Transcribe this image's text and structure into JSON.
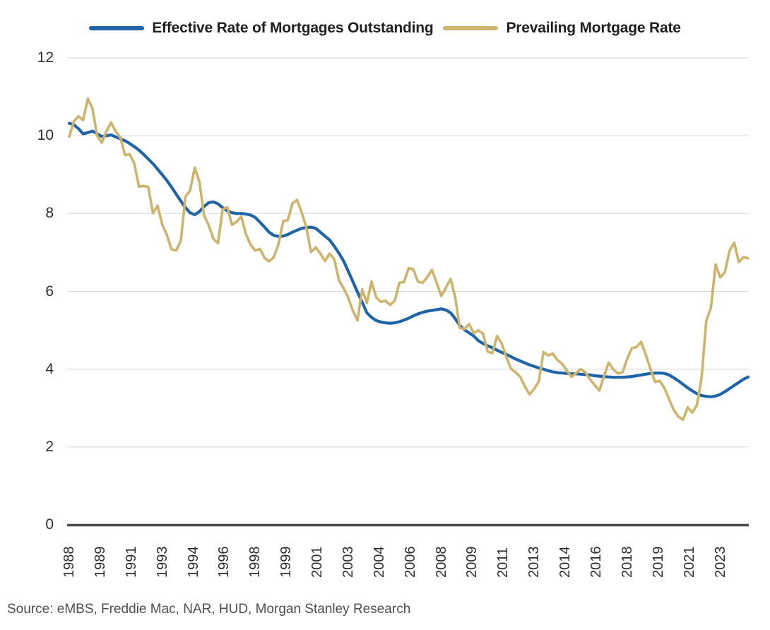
{
  "source_text": "Source: eMBS, Freddie Mac, NAR, HUD, Morgan Stanley Research",
  "chart_data": {
    "type": "line",
    "title": "",
    "xlabel": "",
    "ylabel": "",
    "x_unit": "year (quarterly samples)",
    "x_start": 1988.0,
    "x_step": 0.25,
    "xlim": [
      1988.0,
      2024.6
    ],
    "ylim": [
      0,
      12.4
    ],
    "y_ticks": [
      0,
      2,
      4,
      6,
      8,
      10,
      12
    ],
    "grid": "horizontal",
    "legend_position": "top",
    "grid_color": "#dadada",
    "axis_color": "#4d4d4d",
    "text_color": "#2e2e2e",
    "x_ticks": [
      {
        "label": "1988",
        "year": 1988.0
      },
      {
        "label": "1989",
        "year": 1989.667
      },
      {
        "label": "1991",
        "year": 1991.333
      },
      {
        "label": "1993",
        "year": 1993.0
      },
      {
        "label": "1994",
        "year": 1994.667
      },
      {
        "label": "1996",
        "year": 1996.333
      },
      {
        "label": "1998",
        "year": 1998.0
      },
      {
        "label": "1999",
        "year": 1999.667
      },
      {
        "label": "2001",
        "year": 2001.333
      },
      {
        "label": "2003",
        "year": 2003.0
      },
      {
        "label": "2004",
        "year": 2004.667
      },
      {
        "label": "2006",
        "year": 2006.333
      },
      {
        "label": "2008",
        "year": 2008.0
      },
      {
        "label": "2009",
        "year": 2009.667
      },
      {
        "label": "2011",
        "year": 2011.333
      },
      {
        "label": "2013",
        "year": 2013.0
      },
      {
        "label": "2014",
        "year": 2014.667
      },
      {
        "label": "2016",
        "year": 2016.333
      },
      {
        "label": "2018",
        "year": 2018.0
      },
      {
        "label": "2019",
        "year": 2019.667
      },
      {
        "label": "2021",
        "year": 2021.333
      },
      {
        "label": "2023",
        "year": 2023.0
      }
    ],
    "series": [
      {
        "name": "Effective Rate of Mortgages Outstanding",
        "color": "#1f63a8",
        "line_width": 4.2,
        "values": [
          10.32,
          10.28,
          10.18,
          10.05,
          10.08,
          10.12,
          10.05,
          9.98,
          10.0,
          10.02,
          9.97,
          9.92,
          9.87,
          9.8,
          9.72,
          9.63,
          9.52,
          9.4,
          9.28,
          9.14,
          9.0,
          8.85,
          8.68,
          8.5,
          8.32,
          8.15,
          8.02,
          7.97,
          8.05,
          8.18,
          8.28,
          8.3,
          8.25,
          8.15,
          8.07,
          8.02,
          8.0,
          8.0,
          7.99,
          7.96,
          7.9,
          7.78,
          7.65,
          7.52,
          7.44,
          7.41,
          7.42,
          7.46,
          7.52,
          7.57,
          7.62,
          7.64,
          7.65,
          7.62,
          7.52,
          7.42,
          7.32,
          7.16,
          6.98,
          6.78,
          6.52,
          6.25,
          5.98,
          5.72,
          5.45,
          5.33,
          5.25,
          5.21,
          5.19,
          5.18,
          5.19,
          5.22,
          5.26,
          5.31,
          5.37,
          5.42,
          5.46,
          5.49,
          5.51,
          5.53,
          5.55,
          5.52,
          5.45,
          5.3,
          5.12,
          5.01,
          4.93,
          4.85,
          4.73,
          4.66,
          4.6,
          4.55,
          4.49,
          4.43,
          4.38,
          4.32,
          4.26,
          4.21,
          4.16,
          4.11,
          4.07,
          4.03,
          4.0,
          3.96,
          3.93,
          3.91,
          3.9,
          3.89,
          3.88,
          3.88,
          3.87,
          3.86,
          3.85,
          3.83,
          3.82,
          3.81,
          3.8,
          3.79,
          3.79,
          3.79,
          3.8,
          3.81,
          3.83,
          3.85,
          3.87,
          3.89,
          3.9,
          3.9,
          3.89,
          3.85,
          3.78,
          3.7,
          3.61,
          3.52,
          3.44,
          3.37,
          3.32,
          3.3,
          3.29,
          3.31,
          3.35,
          3.42,
          3.5,
          3.58,
          3.66,
          3.74,
          3.8
        ]
      },
      {
        "name": "Prevailing Mortgage Rate",
        "color": "#cdb46d",
        "line_width": 3.6,
        "values": [
          9.98,
          10.37,
          10.5,
          10.4,
          10.95,
          10.7,
          10.0,
          9.82,
          10.12,
          10.34,
          10.11,
          9.95,
          9.5,
          9.53,
          9.28,
          8.69,
          8.71,
          8.68,
          8.01,
          8.2,
          7.72,
          7.45,
          7.08,
          7.05,
          7.3,
          8.44,
          8.59,
          9.18,
          8.81,
          7.95,
          7.7,
          7.35,
          7.24,
          8.11,
          8.16,
          7.71,
          7.79,
          7.92,
          7.47,
          7.2,
          7.05,
          7.09,
          6.86,
          6.77,
          6.88,
          7.21,
          7.8,
          7.83,
          8.26,
          8.35,
          8.03,
          7.64,
          7.01,
          7.13,
          6.97,
          6.78,
          6.97,
          6.82,
          6.29,
          6.08,
          5.84,
          5.5,
          5.25,
          6.05,
          5.7,
          6.25,
          5.85,
          5.73,
          5.76,
          5.65,
          5.76,
          6.22,
          6.24,
          6.6,
          6.56,
          6.25,
          6.22,
          6.37,
          6.55,
          6.23,
          5.88,
          6.09,
          6.32,
          5.86,
          5.06,
          5.03,
          5.16,
          4.92,
          5.0,
          4.91,
          4.45,
          4.41,
          4.85,
          4.66,
          4.31,
          4.01,
          3.92,
          3.8,
          3.55,
          3.35,
          3.5,
          3.69,
          4.44,
          4.35,
          4.4,
          4.23,
          4.14,
          3.97,
          3.8,
          3.9,
          4.0,
          3.92,
          3.74,
          3.59,
          3.45,
          3.81,
          4.17,
          3.99,
          3.89,
          3.92,
          4.27,
          4.54,
          4.57,
          4.7,
          4.37,
          4.0,
          3.67,
          3.7,
          3.51,
          3.23,
          2.95,
          2.78,
          2.7,
          3.02,
          2.88,
          3.08,
          3.79,
          5.24,
          5.58,
          6.69,
          6.36,
          6.49,
          7.04,
          7.25,
          6.75,
          6.88,
          6.85
        ]
      }
    ]
  }
}
